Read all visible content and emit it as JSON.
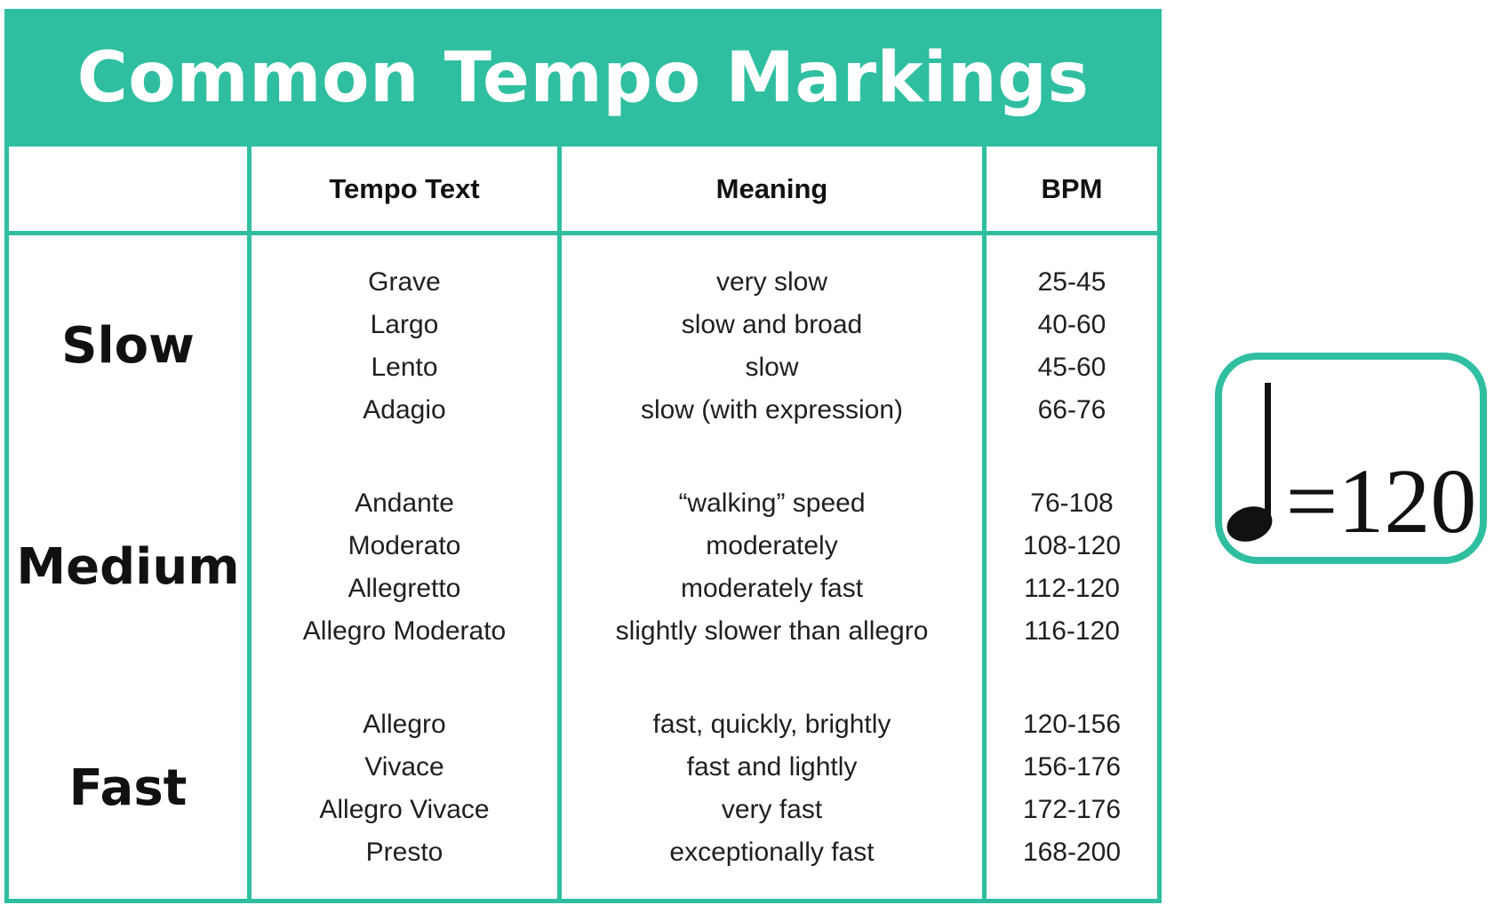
{
  "title": "Common Tempo Markings",
  "colors": {
    "teal": "#2FBFA0",
    "title_text": "#ffffff",
    "body_text": "#1f1f1f"
  },
  "table": {
    "headers": {
      "category": "",
      "tempo_text": "Tempo Text",
      "meaning": "Meaning",
      "bpm": "BPM"
    },
    "sections": [
      {
        "category": "Slow",
        "rows": [
          {
            "tempo": "Grave",
            "meaning": "very slow",
            "bpm": "25-45"
          },
          {
            "tempo": "Largo",
            "meaning": "slow and broad",
            "bpm": "40-60"
          },
          {
            "tempo": "Lento",
            "meaning": "slow",
            "bpm": "45-60"
          },
          {
            "tempo": "Adagio",
            "meaning": "slow (with expression)",
            "bpm": "66-76"
          }
        ]
      },
      {
        "category": "Medium",
        "rows": [
          {
            "tempo": "Andante",
            "meaning": "“walking” speed",
            "bpm": "76-108"
          },
          {
            "tempo": "Moderato",
            "meaning": "moderately",
            "bpm": "108-120"
          },
          {
            "tempo": "Allegretto",
            "meaning": "moderately fast",
            "bpm": "112-120"
          },
          {
            "tempo": "Allegro Moderato",
            "meaning": "slightly slower than allegro",
            "bpm": "116-120"
          }
        ]
      },
      {
        "category": "Fast",
        "rows": [
          {
            "tempo": "Allegro",
            "meaning": "fast, quickly, brightly",
            "bpm": "120-156"
          },
          {
            "tempo": "Vivace",
            "meaning": "fast and lightly",
            "bpm": "156-176"
          },
          {
            "tempo": "Allegro Vivace",
            "meaning": "very fast",
            "bpm": "172-176"
          },
          {
            "tempo": "Presto",
            "meaning": "exceptionally fast",
            "bpm": "168-200"
          }
        ]
      }
    ]
  },
  "tempo_badge": {
    "icon": "quarter-note-icon",
    "value": "=120"
  }
}
